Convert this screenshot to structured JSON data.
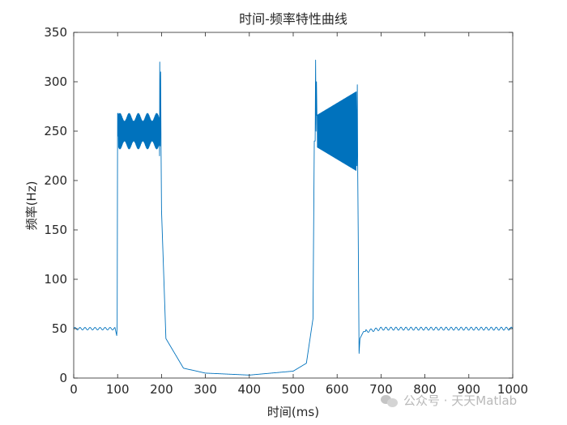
{
  "chart_data": {
    "type": "line",
    "title": "时间-频率特性曲线",
    "xlabel": "时间(ms)",
    "ylabel": "频率(Hz)",
    "xlim": [
      0,
      1000
    ],
    "ylim": [
      0,
      350
    ],
    "xticks": [
      0,
      100,
      200,
      300,
      400,
      500,
      600,
      700,
      800,
      900,
      1000
    ],
    "yticks": [
      0,
      50,
      100,
      150,
      200,
      250,
      300,
      350
    ],
    "grid": false,
    "line_color": "#0072BD",
    "series": [
      {
        "segments": [
          {
            "x_range": [
              0,
              98
            ],
            "level": 50,
            "ripple": 1.2,
            "description_points": [
              [
                0,
                50
              ],
              [
                95,
                48
              ],
              [
                98,
                43
              ]
            ]
          },
          {
            "x_range": [
              100,
              198
            ],
            "level": 250,
            "oscillation_min": 235,
            "oscillation_max": 268,
            "spikes": [
              [
                196,
                320
              ],
              [
                198,
                310
              ]
            ]
          },
          {
            "x_range": [
              200,
              550
            ],
            "decay_points": [
              [
                200,
                170
              ],
              [
                210,
                40
              ],
              [
                250,
                10
              ],
              [
                300,
                5
              ],
              [
                400,
                3
              ],
              [
                500,
                7
              ],
              [
                530,
                15
              ],
              [
                545,
                60
              ],
              [
                548,
                240
              ]
            ]
          },
          {
            "x_range": [
              550,
              648
            ],
            "level": 250,
            "oscillation_min": 220,
            "oscillation_max": 290,
            "spikes": [
              [
                551,
                322
              ],
              [
                555,
                305
              ],
              [
                646,
                297
              ]
            ]
          },
          {
            "x_range": [
              650,
              1000
            ],
            "recovery_points": [
              [
                650,
                25
              ],
              [
                652,
                40
              ],
              [
                660,
                47
              ],
              [
                700,
                50
              ],
              [
                1000,
                50
              ]
            ],
            "ripple": 1.5
          }
        ]
      }
    ]
  },
  "watermark": {
    "text": "公众号 · 天天Matlab",
    "icon": "wechat-icon"
  }
}
